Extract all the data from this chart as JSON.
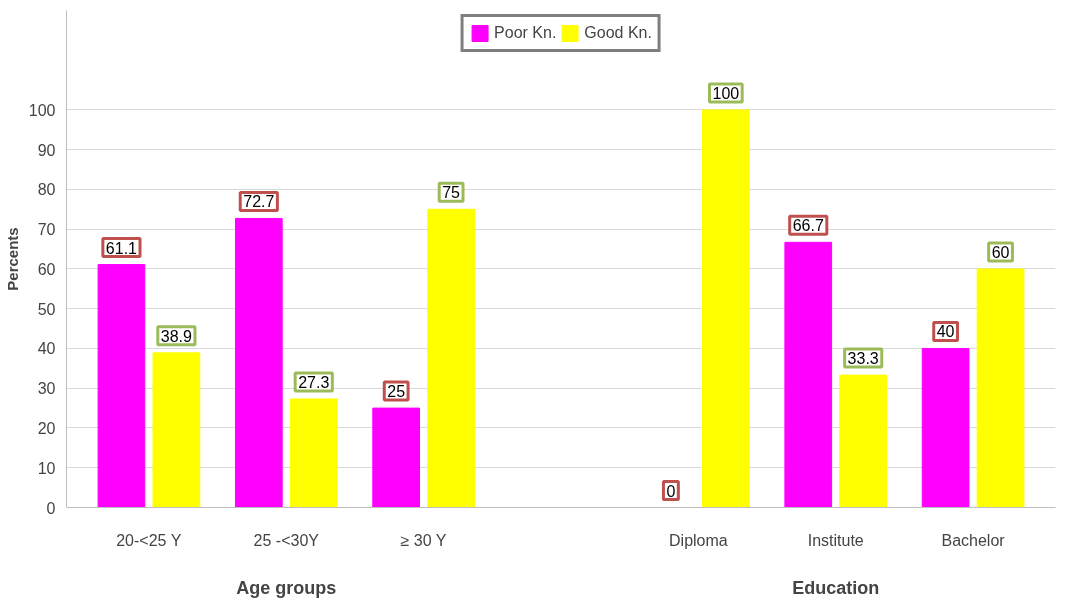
{
  "chart_data": {
    "type": "bar",
    "ylabel": "Percents",
    "categories": [
      "20-<25 Y",
      "25 -<30Y",
      "≥ 30 Y",
      null,
      "Diploma",
      "Institute",
      "Bachelor"
    ],
    "series": [
      {
        "name": "Poor Kn.",
        "color": "#ff00ff",
        "values": [
          61.1,
          72.7,
          25,
          null,
          0,
          66.7,
          40
        ]
      },
      {
        "name": "Good Kn.",
        "color": "#ffff00",
        "values": [
          38.9,
          27.3,
          75,
          null,
          100,
          33.3,
          60
        ]
      }
    ],
    "ylim": [
      0,
      125
    ],
    "yticks": [
      0,
      10,
      20,
      30,
      40,
      50,
      60,
      70,
      80,
      90,
      100
    ],
    "grid": "y",
    "legend": "top",
    "data_labels": true,
    "annotations": [
      "Age groups",
      "Education"
    ]
  }
}
